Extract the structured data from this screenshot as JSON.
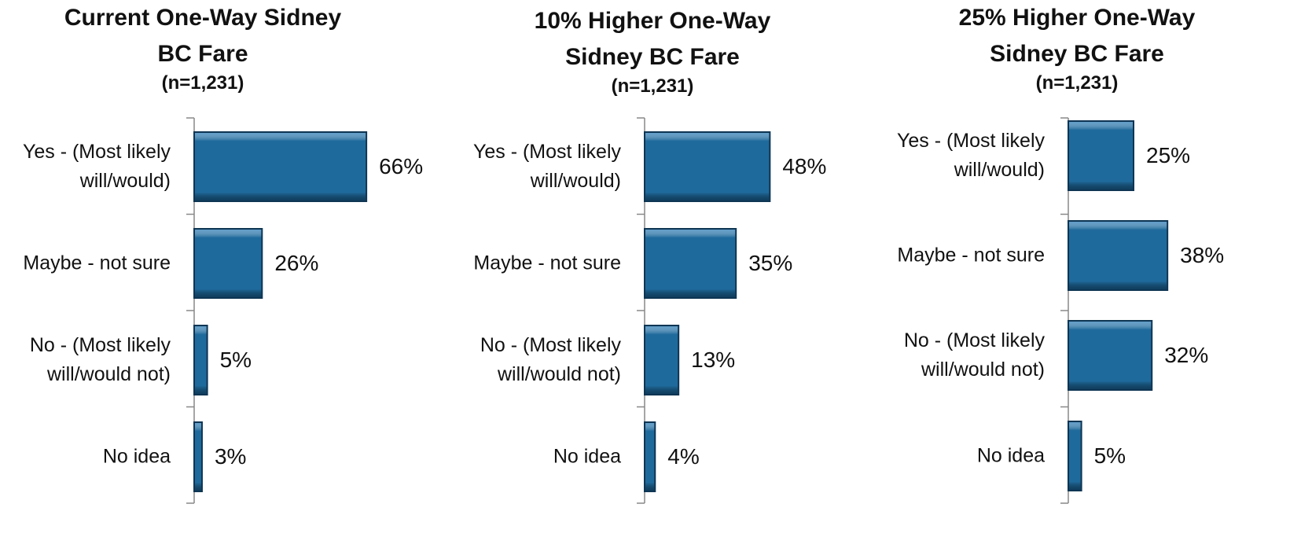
{
  "chart_data": [
    {
      "type": "hbar",
      "title": "Current One-Way Sidney BC Fare",
      "subtitle": "(n=1,231)",
      "categories": [
        "Yes - (Most likely will/would)",
        "Maybe - not sure",
        "No - (Most likely will/would not)",
        "No idea"
      ],
      "values": [
        66,
        26,
        5,
        3
      ],
      "value_labels": [
        "66%",
        "26%",
        "5%",
        "3%"
      ],
      "color": "#1f6a9c"
    },
    {
      "type": "hbar",
      "title": "10% Higher One-Way Sidney BC Fare",
      "subtitle": "(n=1,231)",
      "categories": [
        "Yes - (Most likely will/would)",
        "Maybe - not sure",
        "No - (Most likely will/would not)",
        "No idea"
      ],
      "values": [
        48,
        35,
        13,
        4
      ],
      "value_labels": [
        "48%",
        "35%",
        "13%",
        "4%"
      ],
      "color": "#1f6a9c"
    },
    {
      "type": "hbar",
      "title": "25% Higher One-Way Sidney BC Fare",
      "subtitle": "(n=1,231)",
      "categories": [
        "Yes - (Most likely will/would)",
        "Maybe - not sure",
        "No - (Most likely will/would not)",
        "No idea"
      ],
      "values": [
        25,
        38,
        32,
        5
      ],
      "value_labels": [
        "25%",
        "38%",
        "32%",
        "5%"
      ],
      "color": "#1f6a9c"
    }
  ]
}
